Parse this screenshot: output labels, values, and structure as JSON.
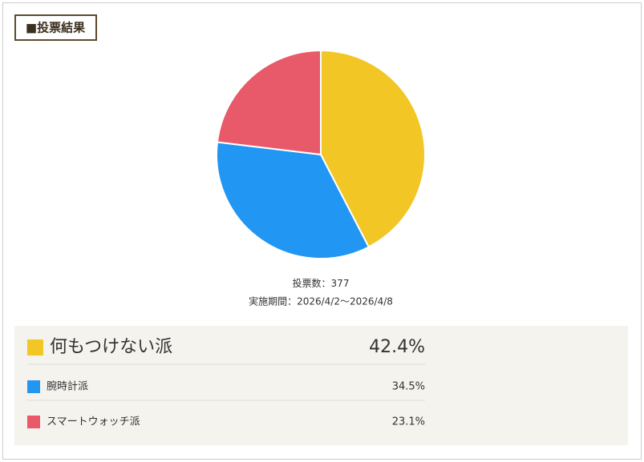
{
  "chart_data": {
    "type": "pie",
    "title": "■投票結果",
    "categories": [
      "何もつけない派",
      "腕時計派",
      "スマートウォッチ派"
    ],
    "values": [
      42.4,
      34.5,
      23.1
    ],
    "value_labels": [
      "42.4%",
      "34.5%",
      "23.1%"
    ],
    "colors": [
      "#f2c624",
      "#2196f3",
      "#e85a6a"
    ]
  },
  "summary": {
    "votes_label": "投票数：",
    "votes": 377,
    "period": "実施期間：2026/4/2〜2026/4/8"
  }
}
